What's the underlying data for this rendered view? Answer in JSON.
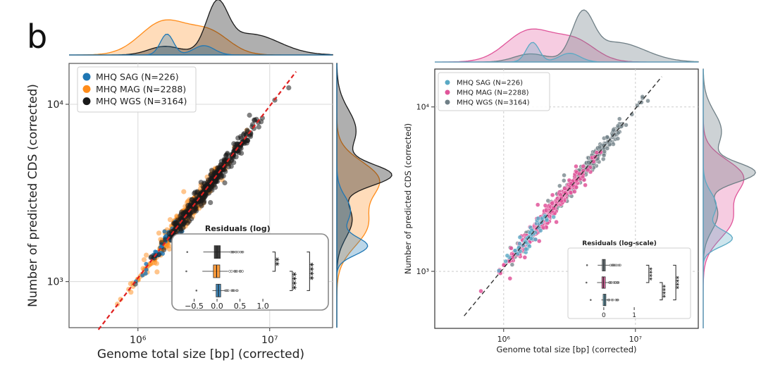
{
  "figure": {
    "panel_label": "b"
  },
  "colors": {
    "sag": "#1f77b4",
    "mag_left": "#ff8c1a",
    "wgs": "#1a1a1a",
    "sag_right": "#5aa9c4",
    "mag_right": "#e0559a",
    "wgs_right": "#6f7f86",
    "fit_left": "#e02020",
    "fit_right": "#333333"
  },
  "chart_data": [
    {
      "id": "left",
      "type": "scatter",
      "title": "",
      "xlabel": "Genome total size [bp] (corrected)",
      "ylabel": "Number of predicted CDS (corrected)",
      "xscale": "log",
      "yscale": "log",
      "xlim": [
        300000,
        30000000
      ],
      "ylim": [
        550,
        17000
      ],
      "x_ticks": [
        {
          "value": 1000000,
          "label": "10⁶"
        },
        {
          "value": 10000000,
          "label": "10⁷"
        }
      ],
      "y_ticks": [
        {
          "value": 1000,
          "label": "10³"
        },
        {
          "value": 10000,
          "label": "10⁴"
        }
      ],
      "grid": true,
      "legend_position": "top-left",
      "series": [
        {
          "key": "sag",
          "name": "MHQ SAG (N=226)",
          "n": 226
        },
        {
          "key": "mag",
          "name": "MHQ MAG (N=2288)",
          "n": 2288
        },
        {
          "key": "wgs",
          "name": "MHQ WGS (N=3164)",
          "n": 3164
        }
      ],
      "fit_line": {
        "style": "dashed",
        "color": "red"
      },
      "inset": {
        "type": "boxplot",
        "title": "Residuals (log)",
        "x_ticks": [
          {
            "value": -0.5,
            "label": "−0.5"
          },
          {
            "value": 0.0,
            "label": "0.0"
          },
          {
            "value": 0.5,
            "label": "0.5"
          },
          {
            "value": 1.0,
            "label": "1.0"
          }
        ],
        "xlim": [
          -0.8,
          1.2
        ],
        "boxes": [
          {
            "series": "wgs",
            "q1": -0.06,
            "median": 0.0,
            "q3": 0.07,
            "whisker_low": -0.3,
            "whisker_high": 0.28
          },
          {
            "series": "mag",
            "q1": -0.08,
            "median": -0.01,
            "q3": 0.06,
            "whisker_low": -0.32,
            "whisker_high": 0.24
          },
          {
            "series": "sag",
            "q1": -0.02,
            "median": 0.03,
            "q3": 0.08,
            "whisker_low": -0.1,
            "whisker_high": 0.18
          }
        ],
        "significance": [
          {
            "pair": "wgs-mag",
            "label": "**"
          },
          {
            "pair": "mag-sag",
            "label": "****"
          },
          {
            "pair": "wgs-sag",
            "label": "****"
          }
        ]
      }
    },
    {
      "id": "right",
      "type": "scatter",
      "title": "",
      "xlabel": "Genome total size [bp] (corrected)",
      "ylabel": "Number of predicted CDS (corrected)",
      "xscale": "log",
      "yscale": "log",
      "xlim": [
        300000,
        30000000
      ],
      "ylim": [
        450,
        17000
      ],
      "x_ticks": [
        {
          "value": 1000000,
          "label": "10⁶"
        },
        {
          "value": 10000000,
          "label": "10⁷"
        }
      ],
      "y_ticks": [
        {
          "value": 1000,
          "label": "10³"
        },
        {
          "value": 10000,
          "label": "10⁴"
        }
      ],
      "grid": true,
      "legend_position": "top-left",
      "series": [
        {
          "key": "sag",
          "name": "MHQ SAG (N=226)",
          "n": 226
        },
        {
          "key": "mag",
          "name": "MHQ MAG (N=2288)",
          "n": 2288
        },
        {
          "key": "wgs",
          "name": "MHQ WGS (N=3164)",
          "n": 3164
        }
      ],
      "fit_line": {
        "style": "dashed",
        "color": "black"
      },
      "inset": {
        "type": "boxplot",
        "title": "Residuals (log-scale)",
        "x_ticks": [
          {
            "value": 0,
            "label": "0"
          },
          {
            "value": 1,
            "label": "1"
          }
        ],
        "xlim": [
          -0.9,
          1.4
        ],
        "boxes": [
          {
            "series": "wgs",
            "q1": -0.05,
            "median": 0.0,
            "q3": 0.05,
            "whisker_low": -0.2,
            "whisker_high": 0.2
          },
          {
            "series": "mag",
            "q1": -0.06,
            "median": -0.01,
            "q3": 0.05,
            "whisker_low": -0.22,
            "whisker_high": 0.18
          },
          {
            "series": "sag",
            "q1": -0.02,
            "median": 0.03,
            "q3": 0.07,
            "whisker_low": -0.08,
            "whisker_high": 0.14
          }
        ],
        "significance": [
          {
            "pair": "wgs-mag",
            "label": "****"
          },
          {
            "pair": "mag-sag",
            "label": "****"
          },
          {
            "pair": "wgs-sag",
            "label": "****"
          }
        ]
      }
    }
  ]
}
